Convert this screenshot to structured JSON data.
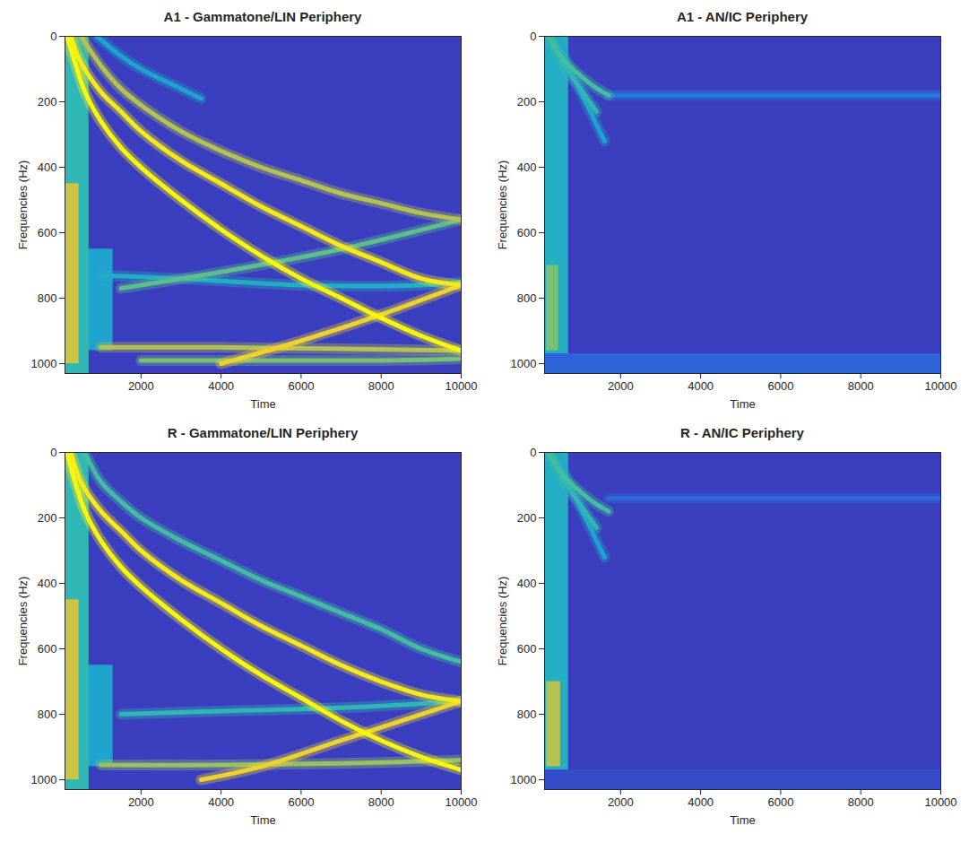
{
  "chart_data": [
    {
      "type": "heatmap",
      "title": "A1 - Gammatone/LIN Periphery",
      "x_label": "Time",
      "y_label": "Frequencies (Hz)",
      "xlim": [
        100,
        10000
      ],
      "ylim": [
        1030,
        0
      ],
      "xticks": [
        2000,
        4000,
        6000,
        8000,
        10000
      ],
      "yticks": [
        0,
        200,
        400,
        600,
        800,
        1000
      ],
      "clim": [
        0,
        1
      ],
      "bands": [
        {
          "x": [
            100,
            1300
          ],
          "y": [
            650,
            960
          ],
          "intensity": 0.35
        },
        {
          "x": [
            100,
            700
          ],
          "y": [
            0,
            1030
          ],
          "intensity": 0.45
        },
        {
          "x": [
            100,
            450
          ],
          "y": [
            450,
            1000
          ],
          "intensity": 0.75
        }
      ],
      "series": [
        {
          "intensity": 0.4,
          "x": [
            1000,
            3000,
            6000,
            9000,
            10000
          ],
          "values": [
            730,
            740,
            760,
            760,
            750
          ]
        },
        {
          "intensity": 0.55,
          "x": [
            1500,
            4000,
            7000,
            10000
          ],
          "values": [
            770,
            720,
            650,
            560
          ]
        },
        {
          "intensity": 0.6,
          "x": [
            2000,
            5000,
            8000,
            10000
          ],
          "values": [
            990,
            990,
            990,
            985
          ]
        },
        {
          "intensity": 0.7,
          "x": [
            1000,
            4000,
            7000,
            10000
          ],
          "values": [
            950,
            950,
            955,
            960
          ]
        },
        {
          "intensity": 0.85,
          "x": [
            4000,
            6000,
            8000,
            10000
          ],
          "values": [
            1000,
            930,
            850,
            760
          ]
        },
        {
          "intensity": 0.35,
          "x": [
            900,
            1500,
            2000,
            3000,
            3500
          ],
          "values": [
            0,
            60,
            100,
            160,
            190
          ]
        },
        {
          "intensity": 0.7,
          "x": [
            500,
            1000,
            1500,
            2000,
            3000,
            4000,
            5000,
            6000,
            7000,
            8000,
            9000,
            10000
          ],
          "values": [
            0,
            90,
            160,
            210,
            290,
            350,
            400,
            440,
            480,
            510,
            540,
            560
          ]
        },
        {
          "intensity": 0.95,
          "x": [
            250,
            500,
            1000,
            1500,
            2000,
            3000,
            4000,
            5000,
            6000,
            7000,
            8000,
            9000,
            10000
          ],
          "values": [
            0,
            80,
            170,
            230,
            290,
            380,
            450,
            520,
            580,
            640,
            690,
            740,
            760
          ]
        },
        {
          "intensity": 1,
          "x": [
            150,
            300,
            600,
            1000,
            1500,
            2000,
            3000,
            4000,
            5000,
            6000,
            7000,
            8000,
            9000,
            10000
          ],
          "values": [
            0,
            60,
            170,
            260,
            340,
            400,
            500,
            590,
            670,
            740,
            800,
            860,
            915,
            960
          ]
        }
      ]
    },
    {
      "type": "heatmap",
      "title": "A1 - AN/IC Periphery",
      "x_label": "Time",
      "y_label": "Frequencies (Hz)",
      "xlim": [
        100,
        10000
      ],
      "ylim": [
        1030,
        0
      ],
      "xticks": [
        2000,
        4000,
        6000,
        8000,
        10000
      ],
      "yticks": [
        0,
        200,
        400,
        600,
        800,
        1000
      ],
      "clim": [
        0,
        1
      ],
      "bands": [
        {
          "x": [
            100,
            10000
          ],
          "y": [
            970,
            1030
          ],
          "intensity": 0.12
        },
        {
          "x": [
            100,
            700
          ],
          "y": [
            0,
            970
          ],
          "intensity": 0.4
        },
        {
          "x": [
            150,
            450
          ],
          "y": [
            700,
            960
          ],
          "intensity": 0.6
        }
      ],
      "series": [
        {
          "intensity": 0.2,
          "x": [
            1700,
            10000
          ],
          "values": [
            180,
            180
          ]
        },
        {
          "intensity": 0.35,
          "x": [
            400,
            800,
            1200,
            1600
          ],
          "values": [
            0,
            120,
            220,
            320
          ]
        },
        {
          "intensity": 0.45,
          "x": [
            300,
            600,
            1000,
            1400
          ],
          "values": [
            0,
            90,
            160,
            230
          ]
        },
        {
          "intensity": 0.5,
          "x": [
            200,
            500,
            900,
            1300,
            1700
          ],
          "values": [
            0,
            60,
            110,
            150,
            180
          ]
        }
      ]
    },
    {
      "type": "heatmap",
      "title": "R - Gammatone/LIN Periphery",
      "x_label": "Time",
      "y_label": "Frequencies (Hz)",
      "xlim": [
        100,
        10000
      ],
      "ylim": [
        1030,
        0
      ],
      "xticks": [
        2000,
        4000,
        6000,
        8000,
        10000
      ],
      "yticks": [
        0,
        200,
        400,
        600,
        800,
        1000
      ],
      "clim": [
        0,
        1
      ],
      "bands": [
        {
          "x": [
            100,
            1300
          ],
          "y": [
            650,
            960
          ],
          "intensity": 0.35
        },
        {
          "x": [
            100,
            700
          ],
          "y": [
            0,
            1030
          ],
          "intensity": 0.45
        },
        {
          "x": [
            100,
            450
          ],
          "y": [
            450,
            1000
          ],
          "intensity": 0.75
        }
      ],
      "series": [
        {
          "intensity": 0.45,
          "x": [
            1500,
            4000,
            7000,
            10000
          ],
          "values": [
            800,
            790,
            780,
            760
          ]
        },
        {
          "intensity": 0.65,
          "x": [
            1000,
            4000,
            7000,
            10000
          ],
          "values": [
            955,
            955,
            950,
            940
          ]
        },
        {
          "intensity": 0.85,
          "x": [
            3500,
            5000,
            7000,
            9000,
            10000
          ],
          "values": [
            1000,
            960,
            880,
            800,
            760
          ]
        },
        {
          "intensity": 0.5,
          "x": [
            600,
            1000,
            1500,
            2000,
            3000,
            4000,
            5000,
            6000,
            7000,
            8000,
            9000,
            10000
          ],
          "values": [
            0,
            90,
            150,
            200,
            270,
            330,
            390,
            440,
            490,
            540,
            600,
            640
          ]
        },
        {
          "intensity": 0.95,
          "x": [
            250,
            500,
            1000,
            1500,
            2000,
            3000,
            4000,
            5000,
            6000,
            7000,
            8000,
            9000,
            10000
          ],
          "values": [
            0,
            90,
            180,
            240,
            300,
            390,
            460,
            530,
            590,
            650,
            700,
            740,
            760
          ]
        },
        {
          "intensity": 1,
          "x": [
            150,
            300,
            600,
            1000,
            1500,
            2000,
            3000,
            4000,
            5000,
            6000,
            7000,
            8000,
            9000,
            10000
          ],
          "values": [
            0,
            70,
            180,
            270,
            350,
            410,
            510,
            600,
            680,
            750,
            820,
            880,
            930,
            970
          ]
        }
      ]
    },
    {
      "type": "heatmap",
      "title": "R - AN/IC Periphery",
      "x_label": "Time",
      "y_label": "Frequencies (Hz)",
      "xlim": [
        100,
        10000
      ],
      "ylim": [
        1030,
        0
      ],
      "xticks": [
        2000,
        4000,
        6000,
        8000,
        10000
      ],
      "yticks": [
        0,
        200,
        400,
        600,
        800,
        1000
      ],
      "clim": [
        0,
        1
      ],
      "bands": [
        {
          "x": [
            100,
            10000
          ],
          "y": [
            970,
            1030
          ],
          "intensity": 0.05
        },
        {
          "x": [
            100,
            700
          ],
          "y": [
            0,
            970
          ],
          "intensity": 0.4
        },
        {
          "x": [
            150,
            500
          ],
          "y": [
            700,
            960
          ],
          "intensity": 0.7
        }
      ],
      "series": [
        {
          "intensity": 0.15,
          "x": [
            1700,
            10000
          ],
          "values": [
            140,
            140
          ]
        },
        {
          "intensity": 0.35,
          "x": [
            400,
            800,
            1200,
            1600
          ],
          "values": [
            0,
            120,
            220,
            320
          ]
        },
        {
          "intensity": 0.45,
          "x": [
            300,
            600,
            1000,
            1400
          ],
          "values": [
            0,
            90,
            160,
            230
          ]
        },
        {
          "intensity": 0.5,
          "x": [
            200,
            500,
            900,
            1300,
            1700
          ],
          "values": [
            0,
            60,
            110,
            150,
            180
          ]
        }
      ]
    }
  ]
}
